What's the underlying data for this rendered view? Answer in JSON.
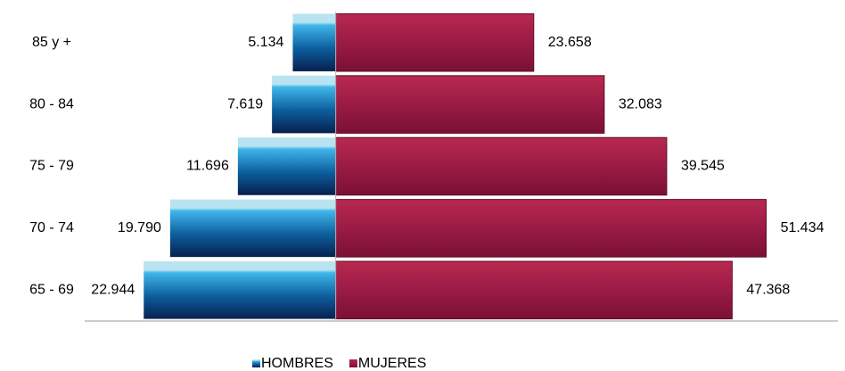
{
  "chart_data": {
    "type": "bar",
    "categories": [
      "85 y +",
      "80 - 84",
      "75 - 79",
      "70 - 74",
      "65 - 69"
    ],
    "series": [
      {
        "name": "HOMBRES",
        "color": "#0a3a78",
        "values": [
          5134,
          7619,
          11696,
          19790,
          22944
        ],
        "value_labels": [
          "5.134",
          "7.619",
          "11.696",
          "19.790",
          "22.944"
        ]
      },
      {
        "name": "MUJERES",
        "color": "#9b1b45",
        "values": [
          23658,
          32083,
          39545,
          51434,
          47368
        ],
        "value_labels": [
          "23.658",
          "32.083",
          "39.545",
          "51.434",
          "47.368"
        ]
      }
    ],
    "xlim": [
      -30000,
      60000
    ],
    "legend": "bottom"
  }
}
